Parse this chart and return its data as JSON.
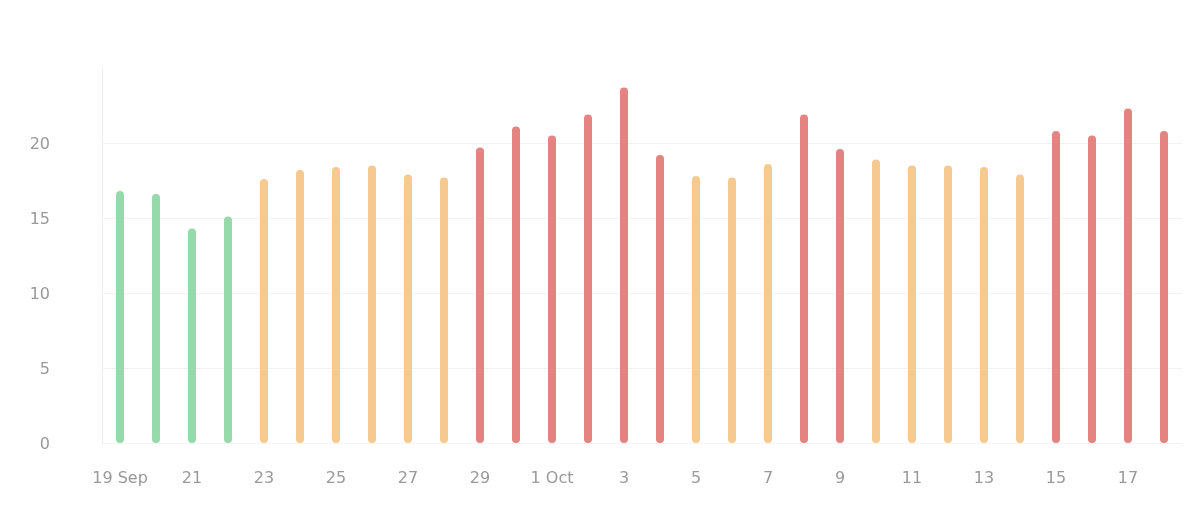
{
  "chart_data": {
    "type": "bar",
    "categories": [
      "19 Sep",
      null,
      "21",
      null,
      "23",
      null,
      "25",
      null,
      "27",
      null,
      "29",
      null,
      "1 Oct",
      null,
      "3",
      null,
      "5",
      null,
      "7",
      null,
      "9",
      null,
      "11",
      null,
      "13",
      null,
      "15",
      null,
      "17",
      null
    ],
    "values": [
      16.8,
      16.6,
      14.3,
      15.1,
      17.6,
      18.2,
      18.4,
      18.5,
      17.9,
      17.7,
      19.7,
      21.1,
      20.5,
      21.9,
      23.7,
      19.2,
      17.8,
      17.7,
      18.6,
      21.9,
      19.6,
      18.9,
      18.5,
      18.5,
      18.4,
      17.9,
      20.8,
      20.5,
      22.3,
      20.8
    ],
    "colors": [
      "#96d9aa",
      "#96d9aa",
      "#96d9aa",
      "#96d9aa",
      "#f5c98f",
      "#f5c98f",
      "#f5c98f",
      "#f5c98f",
      "#f5c98f",
      "#f5c98f",
      "#e4837f",
      "#e4837f",
      "#e4837f",
      "#e4837f",
      "#e4837f",
      "#e4837f",
      "#f5c98f",
      "#f5c98f",
      "#f5c98f",
      "#e4837f",
      "#e4837f",
      "#f5c98f",
      "#f5c98f",
      "#f5c98f",
      "#f5c98f",
      "#f5c98f",
      "#e4837f",
      "#e4837f",
      "#e4837f",
      "#e4837f"
    ],
    "ylim": [
      0,
      25
    ],
    "yticks": [
      0,
      5,
      10,
      15,
      20
    ],
    "grid": "y"
  }
}
